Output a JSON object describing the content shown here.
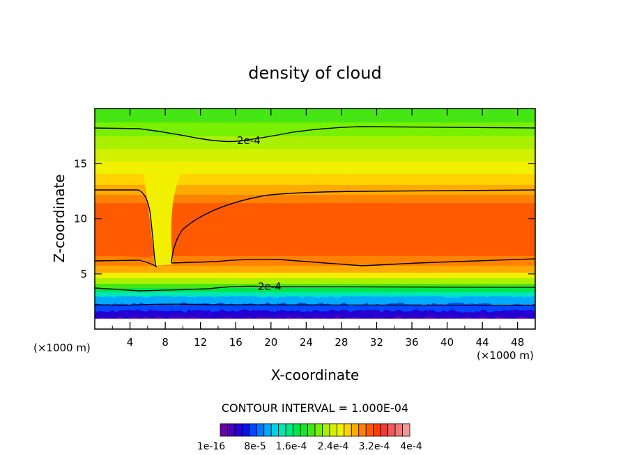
{
  "chart_data": {
    "type": "heatmap",
    "title": "density of cloud",
    "xlabel": "X-coordinate",
    "ylabel": "Z-coordinate",
    "xunit_left": "(×1000 m)",
    "xunit_right": "(×1000 m)",
    "xlim": [
      0,
      50
    ],
    "ylim": [
      0,
      20
    ],
    "xticks": [
      4,
      8,
      12,
      16,
      20,
      24,
      28,
      32,
      36,
      40,
      44,
      48
    ],
    "yticks": [
      5,
      10,
      15
    ],
    "contour_interval_text": "CONTOUR INTERVAL = 1.000E-04",
    "contour_label": "2e-4",
    "colorbar_ticklabels": [
      "1e-16",
      "8e-5",
      "1.6e-4",
      "2.4e-4",
      "3.2e-4",
      "4e-4"
    ],
    "colorbar_colors": [
      "#6a00a8",
      "#4800b8",
      "#2800d0",
      "#0a14e6",
      "#0046ff",
      "#0078ff",
      "#00aaff",
      "#00d2e6",
      "#00e6b4",
      "#00e682",
      "#00e650",
      "#14e628",
      "#46e614",
      "#78f000",
      "#aaf000",
      "#d2f000",
      "#f0f000",
      "#ffd200",
      "#ffaa00",
      "#ff8200",
      "#ff5a00",
      "#ff3c00",
      "#f03c32",
      "#f05a5a",
      "#f07878",
      "#f59696"
    ],
    "grid": false,
    "legend": "colorbar-bottom"
  }
}
